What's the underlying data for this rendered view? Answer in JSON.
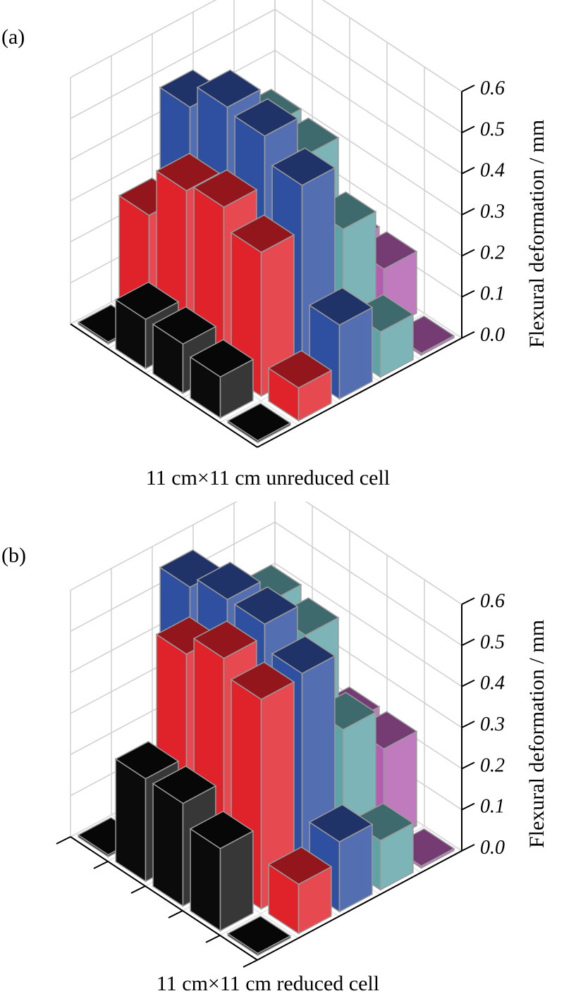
{
  "chart_data": [
    {
      "type": "bar3d",
      "panel_label": "(a)",
      "title": "11 cm×11 cm unreduced cell",
      "zlabel": "Flexural deformation / mm",
      "zlim": [
        0,
        0.6
      ],
      "zticks": [
        "0.0",
        "0.1",
        "0.2",
        "0.3",
        "0.4",
        "0.5",
        "0.6"
      ],
      "grid": true,
      "series": [
        {
          "color": "#0b0b0b",
          "values": [
            0.005,
            0.12,
            0.12,
            0.1,
            0.005
          ]
        },
        {
          "color": "#e0222a",
          "values": [
            0.26,
            0.38,
            0.4,
            0.35,
            0.08
          ]
        },
        {
          "color": "#2f4fa0",
          "values": [
            0.47,
            0.53,
            0.52,
            0.46,
            0.18
          ]
        },
        {
          "color": "#5fa3a7",
          "values": [
            0.31,
            0.43,
            0.42,
            0.3,
            0.11
          ]
        },
        {
          "color": "#b25db0",
          "values": [
            0.005,
            0.005,
            0.15,
            0.15,
            0.005
          ]
        }
      ]
    },
    {
      "type": "bar3d",
      "panel_label": "(b)",
      "title": "11 cm×11 cm reduced cell",
      "zlabel": "Flexural deformation / mm",
      "zlim": [
        0,
        0.6
      ],
      "zticks": [
        "0.0",
        "0.1",
        "0.2",
        "0.3",
        "0.4",
        "0.5",
        "0.6"
      ],
      "grid": true,
      "series": [
        {
          "color": "#0b0b0b",
          "values": [
            0.005,
            0.25,
            0.25,
            0.2,
            0.005
          ]
        },
        {
          "color": "#e0222a",
          "values": [
            0.13,
            0.5,
            0.55,
            0.51,
            0.12
          ]
        },
        {
          "color": "#2f4fa0",
          "values": [
            0.55,
            0.58,
            0.58,
            0.52,
            0.17
          ]
        },
        {
          "color": "#5fa3a7",
          "values": [
            0.37,
            0.52,
            0.5,
            0.33,
            0.12
          ]
        },
        {
          "color": "#b25db0",
          "values": [
            0.005,
            0.005,
            0.23,
            0.23,
            0.005
          ]
        }
      ]
    }
  ]
}
